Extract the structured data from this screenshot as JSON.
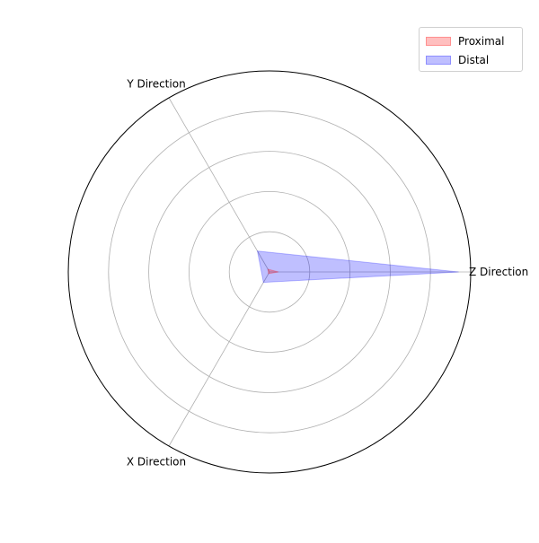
{
  "chart_data": {
    "type": "radar",
    "axes": [
      "X Direction",
      "Y Direction",
      "Z Direction"
    ],
    "r_max": 5.0,
    "grid_rings": [
      1,
      2,
      3,
      4
    ],
    "grid": true,
    "series": [
      {
        "name": "Proximal",
        "color": "#ff0000",
        "values": {
          "X Direction": 0.05,
          "Y Direction": 0.08,
          "Z Direction": 0.22
        }
      },
      {
        "name": "Distal",
        "color": "#0000ff",
        "values": {
          "X Direction": 0.3,
          "Y Direction": 0.6,
          "Z Direction": 4.7
        }
      }
    ],
    "legend_position": "top-right"
  }
}
